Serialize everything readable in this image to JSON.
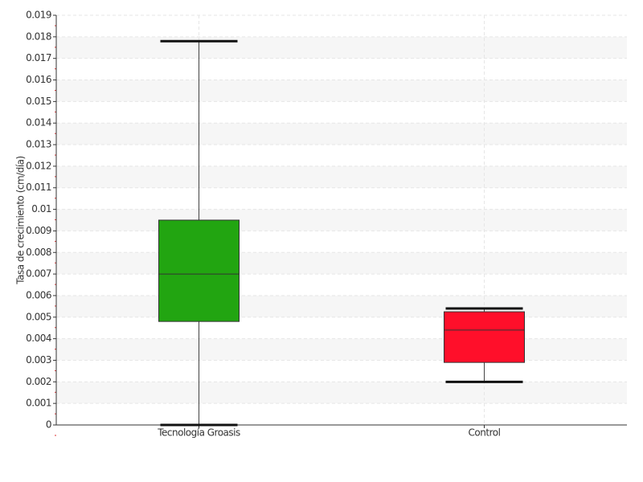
{
  "chart_data": {
    "type": "box",
    "y_label": "Tasa de crecimiento (cm/día)",
    "categories": [
      "Tecnología Groasis",
      "Control"
    ],
    "colors": [
      "#22a511",
      "#ff0f2a"
    ],
    "min": [
      0,
      0.002
    ],
    "q1": [
      0.0048,
      0.0029
    ],
    "median": [
      0.007,
      0.0044
    ],
    "q3": [
      0.0095,
      0.00525
    ],
    "max": [
      0.0178,
      0.0054
    ],
    "ylim": [
      0,
      0.019
    ],
    "yticks": [
      0,
      0.001,
      0.002,
      0.003,
      0.004,
      0.005,
      0.006,
      0.007,
      0.008,
      0.009,
      0.01,
      0.011,
      0.012,
      0.013,
      0.014,
      0.015,
      0.016,
      0.017,
      0.018,
      0.019
    ],
    "grid": true
  }
}
